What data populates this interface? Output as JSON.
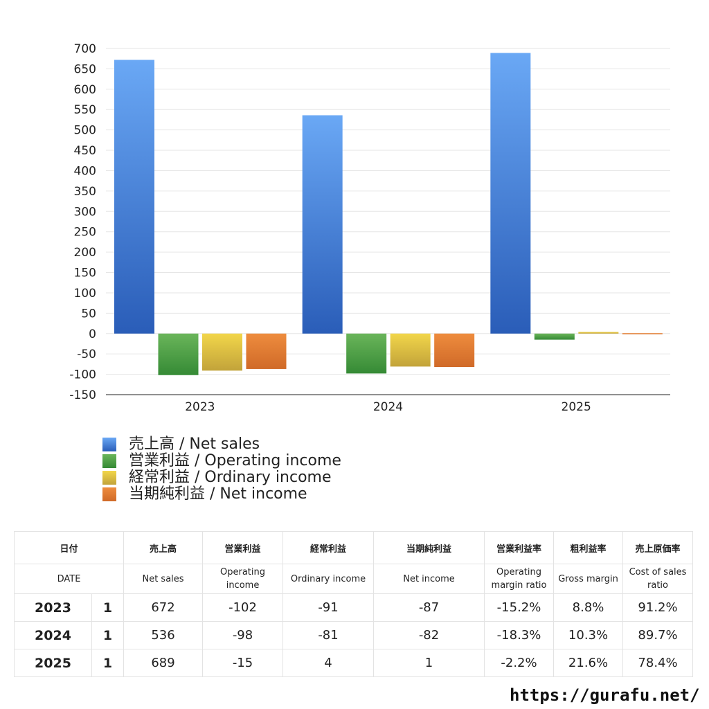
{
  "chart_data": {
    "type": "bar",
    "categories": [
      "2023",
      "2024",
      "2025"
    ],
    "ylim": [
      -150,
      700
    ],
    "ytick_step": 50,
    "grid": true,
    "legend_position": "bottom-left",
    "series": [
      {
        "name": "売上高 / Net sales",
        "values": [
          672,
          536,
          689
        ],
        "color_top": "#6aa8f5",
        "color_bottom": "#2a5db8"
      },
      {
        "name": "営業利益 / Operating income",
        "values": [
          -102,
          -98,
          -15
        ],
        "color_top": "#6ab55a",
        "color_bottom": "#358a35"
      },
      {
        "name": "経常利益 / Ordinary income",
        "values": [
          -91,
          -81,
          4
        ],
        "color_top": "#f2d64a",
        "color_bottom": "#c2a33a"
      },
      {
        "name": "当期純利益 / Net income",
        "values": [
          -87,
          -82,
          1
        ],
        "color_top": "#ee8c3e",
        "color_bottom": "#d06a28"
      }
    ]
  },
  "table": {
    "header_jp": [
      "日付",
      "売上高",
      "営業利益",
      "経常利益",
      "当期純利益",
      "営業利益率",
      "粗利益率",
      "売上原価率"
    ],
    "header_en": [
      "DATE",
      "Net sales",
      "Operating income",
      "Ordinary income",
      "Net income",
      "Operating margin ratio",
      "Gross margin",
      "Cost of sales ratio"
    ],
    "rows": [
      {
        "year": "2023",
        "q": "1",
        "cells": [
          "672",
          "-102",
          "-91",
          "-87",
          "-15.2%",
          "8.8%",
          "91.2%"
        ]
      },
      {
        "year": "2024",
        "q": "1",
        "cells": [
          "536",
          "-98",
          "-81",
          "-82",
          "-18.3%",
          "10.3%",
          "89.7%"
        ]
      },
      {
        "year": "2025",
        "q": "1",
        "cells": [
          "689",
          "-15",
          "4",
          "1",
          "-2.2%",
          "21.6%",
          "78.4%"
        ]
      }
    ],
    "negative_color": "#d4442a"
  },
  "site_url": "https://gurafu.net/"
}
